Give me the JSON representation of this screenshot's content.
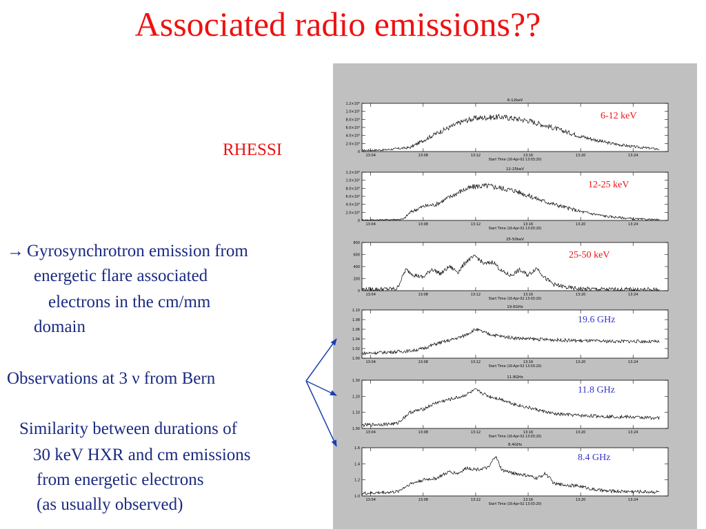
{
  "slide": {
    "title": "Associated radio emissions??",
    "rhessi_label": "RHESSI",
    "text": {
      "arrow_symbol": "→",
      "line1": "Gyrosynchrotron emission from",
      "line2": "energetic flare associated",
      "line3": "electrons in the cm/mm",
      "line4": "domain",
      "observations": "Observations at 3 ν from Bern",
      "sim1": "Similarity between durations of",
      "sim2": "30 keV HXR and cm emissions",
      "sim3": "from energetic electrons",
      "sim4": "(as usually observed)"
    }
  },
  "colors": {
    "title": "#ee1111",
    "body_text": "#1a2a80",
    "xray_label": "#ee1111",
    "radio_label": "#3333cc",
    "panel_bg": "#c0c0c0",
    "arrow": "#1a3fb0"
  },
  "chart_data": [
    {
      "type": "line",
      "title": "6-12keV",
      "overlay_label": "6-12 keV",
      "overlay_label_color": "#ee1111",
      "xlabel": "Start Time (16-Apr-02 13:03:20)",
      "x_ticks": [
        "13:04",
        "13:08",
        "13:12",
        "13:16",
        "13:20",
        "13:24"
      ],
      "y_ticks": [
        "0",
        "2.0×10⁴",
        "4.0×10⁴",
        "6.0×10⁴",
        "8.0×10⁴",
        "1.0×10⁵",
        "1.2×10⁵"
      ],
      "ylim": [
        0,
        120000
      ],
      "x": [
        "13:03:20",
        "13:05:00",
        "13:07:00",
        "13:09:00",
        "13:10:00",
        "13:11:00",
        "13:12:00",
        "13:13:00",
        "13:14:00",
        "13:15:00",
        "13:16:00",
        "13:17:00",
        "13:18:00",
        "13:20:00",
        "13:22:00",
        "13:24:00",
        "13:26:00"
      ],
      "y": [
        3000,
        4000,
        10000,
        45000,
        60000,
        75000,
        83000,
        85000,
        86000,
        82000,
        77000,
        68000,
        58000,
        38000,
        22000,
        12000,
        6000
      ]
    },
    {
      "type": "line",
      "title": "12-25keV",
      "overlay_label": "12-25 keV",
      "overlay_label_color": "#ee1111",
      "xlabel": "Start Time (16-Apr-02 13:03:20)",
      "x_ticks": [
        "13:04",
        "13:08",
        "13:12",
        "13:16",
        "13:20",
        "13:24"
      ],
      "y_ticks": [
        "0",
        "2.0×10⁴",
        "4.0×10⁴",
        "6.0×10⁴",
        "8.0×10⁴",
        "1.0×10⁵",
        "1.2×10⁵"
      ],
      "ylim": [
        0,
        120000
      ],
      "x": [
        "13:03:20",
        "13:05:00",
        "13:06:30",
        "13:07:00",
        "13:08:00",
        "13:09:00",
        "13:10:00",
        "13:11:00",
        "13:12:00",
        "13:13:00",
        "13:14:00",
        "13:15:00",
        "13:16:00",
        "13:17:00",
        "13:18:00",
        "13:20:00",
        "13:22:00",
        "13:24:00",
        "13:26:00"
      ],
      "y": [
        1000,
        1500,
        3000,
        20000,
        35000,
        40000,
        58000,
        75000,
        85000,
        86000,
        80000,
        74000,
        62000,
        50000,
        40000,
        22000,
        10000,
        4000,
        1500
      ]
    },
    {
      "type": "line",
      "title": "25-50keV",
      "overlay_label": "25-50 keV",
      "overlay_label_color": "#ee1111",
      "xlabel": "Start Time (16-Apr-02 13:03:20)",
      "x_ticks": [
        "13:04",
        "13:08",
        "13:12",
        "13:16",
        "13:20",
        "13:24"
      ],
      "y_ticks": [
        "0",
        "200",
        "400",
        "600",
        "800"
      ],
      "ylim": [
        0,
        800
      ],
      "x": [
        "13:03:20",
        "13:06:00",
        "13:06:40",
        "13:07:20",
        "13:08:00",
        "13:08:40",
        "13:09:20",
        "13:10:00",
        "13:10:40",
        "13:11:20",
        "13:12:00",
        "13:12:40",
        "13:13:20",
        "13:14:00",
        "13:14:40",
        "13:15:20",
        "13:16:00",
        "13:16:40",
        "13:17:20",
        "13:18:00",
        "13:19:00",
        "13:20:00",
        "13:22:00",
        "13:26:00"
      ],
      "y": [
        20,
        30,
        350,
        260,
        220,
        360,
        280,
        400,
        310,
        500,
        570,
        440,
        480,
        320,
        250,
        340,
        260,
        380,
        200,
        100,
        50,
        30,
        20,
        15
      ]
    },
    {
      "type": "line",
      "title": "19.6GHz",
      "overlay_label": "19.6 GHz",
      "overlay_label_color": "#3333cc",
      "xlabel": "Start Time (16-Apr-02 13:03:20)",
      "x_ticks": [
        "13:04",
        "13:08",
        "13:12",
        "13:16",
        "13:20",
        "13:24"
      ],
      "y_ticks": [
        "1.00",
        "1.02",
        "1.04",
        "1.06",
        "1.08",
        "1.10"
      ],
      "ylim": [
        1.0,
        1.1
      ],
      "x": [
        "13:03:20",
        "13:05:00",
        "13:07:00",
        "13:08:00",
        "13:09:00",
        "13:10:00",
        "13:11:00",
        "13:12:00",
        "13:13:00",
        "13:14:00",
        "13:15:00",
        "13:16:00",
        "13:18:00",
        "13:20:00",
        "13:22:00",
        "13:24:00",
        "13:26:00"
      ],
      "y": [
        1.01,
        1.012,
        1.015,
        1.02,
        1.03,
        1.037,
        1.045,
        1.06,
        1.05,
        1.045,
        1.042,
        1.04,
        1.038,
        1.036,
        1.035,
        1.035,
        1.034
      ]
    },
    {
      "type": "line",
      "title": "11.8GHz",
      "overlay_label": "11.8 GHz",
      "overlay_label_color": "#3333cc",
      "xlabel": "Start Time (16-Apr-02 13:03:20)",
      "x_ticks": [
        "13:04",
        "13:08",
        "13:12",
        "13:16",
        "13:20",
        "13:24"
      ],
      "y_ticks": [
        "1.00",
        "1.10",
        "1.20",
        "1.30"
      ],
      "ylim": [
        1.0,
        1.3
      ],
      "x": [
        "13:03:20",
        "13:06:00",
        "13:07:00",
        "13:08:00",
        "13:09:00",
        "13:10:00",
        "13:11:00",
        "13:12:00",
        "13:13:00",
        "13:14:00",
        "13:15:00",
        "13:16:00",
        "13:17:00",
        "13:18:00",
        "13:20:00",
        "13:22:00",
        "13:24:00",
        "13:26:00"
      ],
      "y": [
        1.02,
        1.03,
        1.1,
        1.12,
        1.16,
        1.18,
        1.2,
        1.24,
        1.2,
        1.18,
        1.15,
        1.13,
        1.11,
        1.09,
        1.08,
        1.075,
        1.07,
        1.065
      ]
    },
    {
      "type": "line",
      "title": "8.4GHz",
      "overlay_label": "8.4 GHz",
      "overlay_label_color": "#3333cc",
      "xlabel": "Start Time (16-Apr-02 13:03:20)",
      "x_ticks": [
        "13:04",
        "13:08",
        "13:12",
        "13:16",
        "13:20",
        "13:24"
      ],
      "y_ticks": [
        "1.0",
        "1.2",
        "1.4",
        "1.6"
      ],
      "ylim": [
        1.0,
        1.6
      ],
      "x": [
        "13:03:20",
        "13:06:00",
        "13:07:00",
        "13:08:00",
        "13:09:00",
        "13:10:00",
        "13:10:40",
        "13:11:20",
        "13:12:00",
        "13:13:00",
        "13:13:30",
        "13:14:00",
        "13:15:00",
        "13:16:00",
        "13:16:40",
        "13:17:20",
        "13:18:00",
        "13:20:00",
        "13:21:00",
        "13:22:00",
        "13:26:00"
      ],
      "y": [
        1.03,
        1.05,
        1.15,
        1.2,
        1.22,
        1.3,
        1.28,
        1.35,
        1.33,
        1.35,
        1.5,
        1.32,
        1.28,
        1.25,
        1.22,
        1.28,
        1.15,
        1.12,
        1.08,
        1.06,
        1.05
      ]
    }
  ]
}
